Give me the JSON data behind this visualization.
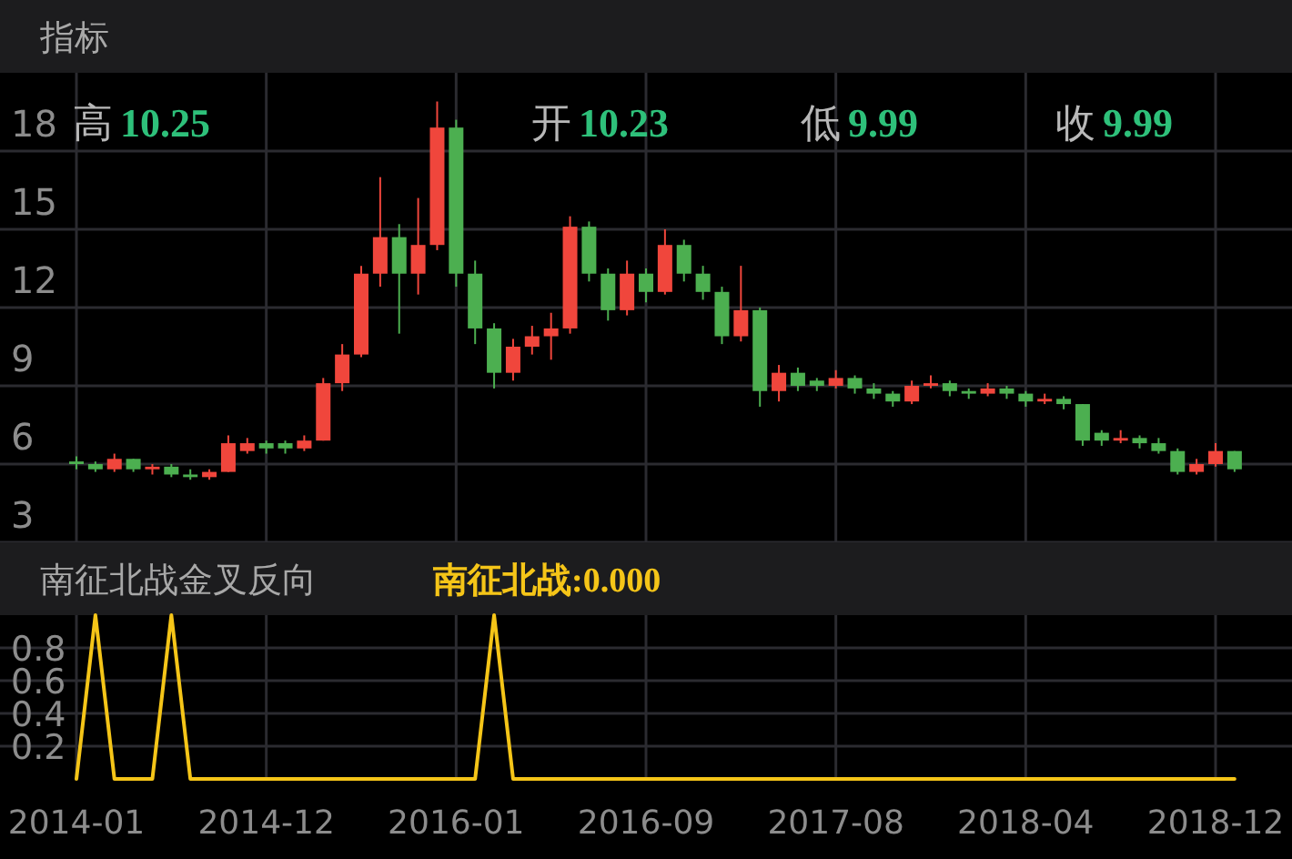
{
  "chart_data": [
    {
      "type": "candlestick",
      "title": "指标",
      "tick_labels": "y",
      "grid": true,
      "ylim": [
        3,
        21
      ],
      "yticks": [
        3,
        6,
        9,
        12,
        15,
        18
      ],
      "annotations": [
        "高",
        "10.25",
        "开",
        "10.23",
        "低",
        "9.99",
        "收",
        "9.99"
      ],
      "categories": [
        "2014-01",
        null,
        null,
        null,
        null,
        null,
        null,
        null,
        null,
        null,
        "2014-12",
        null,
        null,
        null,
        null,
        null,
        null,
        null,
        null,
        null,
        "2016-01",
        null,
        null,
        null,
        null,
        null,
        null,
        null,
        null,
        null,
        "2016-09",
        null,
        null,
        null,
        null,
        null,
        null,
        null,
        null,
        null,
        "2017-08",
        null,
        null,
        null,
        null,
        null,
        null,
        null,
        null,
        null,
        "2018-04",
        null,
        null,
        null,
        null,
        null,
        null,
        null,
        null,
        null,
        "2018-12",
        null
      ],
      "ohlc": [
        [
          6.1,
          6.3,
          5.8,
          6.0
        ],
        [
          6.0,
          6.1,
          5.7,
          5.8
        ],
        [
          5.8,
          6.4,
          5.7,
          6.2
        ],
        [
          6.2,
          6.2,
          5.7,
          5.8
        ],
        [
          5.8,
          6.0,
          5.6,
          5.9
        ],
        [
          5.9,
          6.0,
          5.5,
          5.6
        ],
        [
          5.6,
          5.8,
          5.4,
          5.5
        ],
        [
          5.5,
          5.8,
          5.4,
          5.7
        ],
        [
          5.7,
          7.1,
          5.7,
          6.8
        ],
        [
          6.5,
          7.0,
          6.4,
          6.8
        ],
        [
          6.8,
          6.9,
          6.4,
          6.6
        ],
        [
          6.8,
          6.9,
          6.4,
          6.6
        ],
        [
          6.6,
          7.1,
          6.5,
          6.9
        ],
        [
          6.9,
          9.3,
          6.9,
          9.1
        ],
        [
          9.1,
          10.6,
          8.8,
          10.2
        ],
        [
          10.2,
          13.6,
          10.1,
          13.3
        ],
        [
          13.3,
          17.0,
          12.8,
          14.7
        ],
        [
          14.7,
          15.2,
          11.0,
          13.3
        ],
        [
          13.3,
          16.2,
          12.5,
          14.4
        ],
        [
          14.4,
          19.9,
          14.2,
          18.9
        ],
        [
          18.9,
          19.2,
          12.8,
          13.3
        ],
        [
          13.3,
          13.8,
          10.6,
          11.2
        ],
        [
          11.2,
          11.4,
          8.9,
          9.5
        ],
        [
          9.5,
          10.8,
          9.2,
          10.5
        ],
        [
          10.5,
          11.3,
          10.2,
          10.9
        ],
        [
          10.9,
          11.8,
          10.0,
          11.2
        ],
        [
          11.2,
          15.5,
          11.0,
          15.1
        ],
        [
          15.1,
          15.3,
          13.0,
          13.3
        ],
        [
          13.3,
          13.5,
          11.5,
          11.9
        ],
        [
          11.9,
          13.8,
          11.7,
          13.3
        ],
        [
          13.3,
          13.5,
          12.2,
          12.6
        ],
        [
          12.6,
          15.0,
          12.5,
          14.4
        ],
        [
          14.4,
          14.6,
          13.0,
          13.3
        ],
        [
          13.3,
          13.6,
          12.3,
          12.6
        ],
        [
          12.6,
          12.8,
          10.6,
          10.9
        ],
        [
          10.9,
          13.6,
          10.7,
          11.9
        ],
        [
          11.9,
          12.0,
          8.2,
          8.8
        ],
        [
          8.8,
          9.8,
          8.4,
          9.5
        ],
        [
          9.5,
          9.7,
          8.8,
          9.0
        ],
        [
          9.2,
          9.3,
          8.8,
          9.0
        ],
        [
          9.0,
          9.6,
          8.9,
          9.3
        ],
        [
          9.3,
          9.4,
          8.7,
          8.9
        ],
        [
          8.9,
          9.1,
          8.5,
          8.7
        ],
        [
          8.7,
          8.8,
          8.2,
          8.4
        ],
        [
          8.4,
          9.2,
          8.3,
          9.0
        ],
        [
          9.0,
          9.4,
          8.9,
          9.1
        ],
        [
          9.1,
          9.2,
          8.6,
          8.8
        ],
        [
          8.8,
          8.9,
          8.5,
          8.7
        ],
        [
          8.7,
          9.1,
          8.6,
          8.9
        ],
        [
          8.9,
          9.0,
          8.5,
          8.7
        ],
        [
          8.7,
          8.8,
          8.2,
          8.4
        ],
        [
          8.4,
          8.7,
          8.3,
          8.5
        ],
        [
          8.5,
          8.6,
          8.1,
          8.3
        ],
        [
          8.3,
          8.3,
          6.7,
          6.9
        ],
        [
          7.2,
          7.3,
          6.7,
          6.9
        ],
        [
          6.9,
          7.3,
          6.8,
          7.0
        ],
        [
          7.0,
          7.1,
          6.6,
          6.8
        ],
        [
          6.8,
          7.0,
          6.4,
          6.5
        ],
        [
          6.5,
          6.6,
          5.6,
          5.7
        ],
        [
          5.7,
          6.2,
          5.6,
          6.0
        ],
        [
          6.0,
          6.8,
          5.9,
          6.5
        ],
        [
          6.5,
          6.5,
          5.7,
          5.8
        ]
      ],
      "colors": [
        "#4caf50",
        "#4caf50",
        "#f0463c",
        "#4caf50",
        "#f0463c",
        "#4caf50",
        "#4caf50",
        "#f0463c",
        "#f0463c",
        "#f0463c",
        "#4caf50",
        "#4caf50",
        "#f0463c",
        "#f0463c",
        "#f0463c",
        "#f0463c",
        "#f0463c",
        "#4caf50",
        "#f0463c",
        "#f0463c",
        "#4caf50",
        "#4caf50",
        "#4caf50",
        "#f0463c",
        "#f0463c",
        "#f0463c",
        "#f0463c",
        "#4caf50",
        "#4caf50",
        "#f0463c",
        "#4caf50",
        "#f0463c",
        "#4caf50",
        "#4caf50",
        "#4caf50",
        "#f0463c",
        "#4caf50",
        "#f0463c",
        "#4caf50",
        "#4caf50",
        "#f0463c",
        "#4caf50",
        "#4caf50",
        "#4caf50",
        "#f0463c",
        "#f0463c",
        "#4caf50",
        "#4caf50",
        "#f0463c",
        "#4caf50",
        "#4caf50",
        "#f0463c",
        "#4caf50",
        "#4caf50",
        "#4caf50",
        "#f0463c",
        "#4caf50",
        "#4caf50",
        "#4caf50",
        "#f0463c",
        "#f0463c",
        "#4caf50"
      ]
    },
    {
      "type": "line",
      "title": "南征北战金叉反向",
      "grid": true,
      "ylim": [
        0,
        1
      ],
      "yticks": [
        0.2,
        0.4,
        0.6,
        0.8
      ],
      "annotations": [
        "南征北战:0.000"
      ],
      "categories": [
        "2014-01",
        null,
        null,
        null,
        null,
        null,
        null,
        null,
        null,
        null,
        "2014-12",
        null,
        null,
        null,
        null,
        null,
        null,
        null,
        null,
        null,
        "2016-01",
        null,
        null,
        null,
        null,
        null,
        null,
        null,
        null,
        null,
        "2016-09",
        null,
        null,
        null,
        null,
        null,
        null,
        null,
        null,
        null,
        "2017-08",
        null,
        null,
        null,
        null,
        null,
        null,
        null,
        null,
        null,
        "2018-04",
        null,
        null,
        null,
        null,
        null,
        null,
        null,
        null,
        null,
        "2018-12",
        null
      ],
      "series": [
        {
          "color": "#f5c518",
          "values": [
            0,
            1,
            0,
            0,
            0,
            1,
            0,
            0,
            0,
            0,
            0,
            0,
            0,
            0,
            0,
            0,
            0,
            0,
            0,
            0,
            0,
            0,
            1,
            0,
            0,
            0,
            0,
            0,
            0,
            0,
            0,
            0,
            0,
            0,
            0,
            0,
            0,
            0,
            0,
            0,
            0,
            0,
            0,
            0,
            0,
            0,
            0,
            0,
            0,
            0,
            0,
            0,
            0,
            0,
            0,
            0,
            0,
            0,
            0,
            0,
            0,
            0
          ]
        }
      ]
    }
  ]
}
